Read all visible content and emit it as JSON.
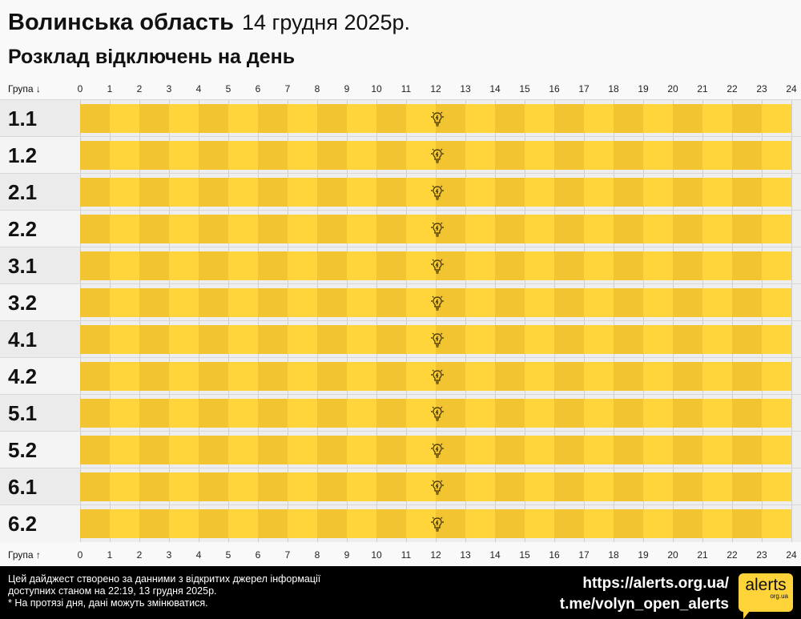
{
  "header": {
    "region": "Волинська область",
    "date": "14 грудня 2025р.",
    "subtitle": "Розклад відключень на день"
  },
  "axis": {
    "top_label": "Група ↓",
    "bottom_label": "Група ↑"
  },
  "colors": {
    "on_even": "#f3c432",
    "on_odd": "#ffd53b",
    "track": "#eeeeee"
  },
  "chart_data": {
    "type": "heatmap",
    "x_ticks": [
      0,
      1,
      2,
      3,
      4,
      5,
      6,
      7,
      8,
      9,
      10,
      11,
      12,
      13,
      14,
      15,
      16,
      17,
      18,
      19,
      20,
      21,
      22,
      23,
      24
    ],
    "groups": [
      "1.1",
      "1.2",
      "2.1",
      "2.2",
      "3.1",
      "3.2",
      "4.1",
      "4.2",
      "5.1",
      "5.2",
      "6.1",
      "6.2"
    ],
    "status": "power on all day (no outages) for all groups",
    "outages": [],
    "icon": "lightbulb-icon at hour 12"
  },
  "footer": {
    "line1": "Цей дайджест створено за данними з відкритих джерел інформації",
    "line2": "доступних станом на 22:19, 13 грудня 2025р.",
    "line3": "* На протязі дня, дані можуть змінюватися.",
    "link1": "https://alerts.org.ua/",
    "link2": "t.me/volyn_open_alerts",
    "logo_main": "alerts",
    "logo_sub": "org.ua"
  }
}
